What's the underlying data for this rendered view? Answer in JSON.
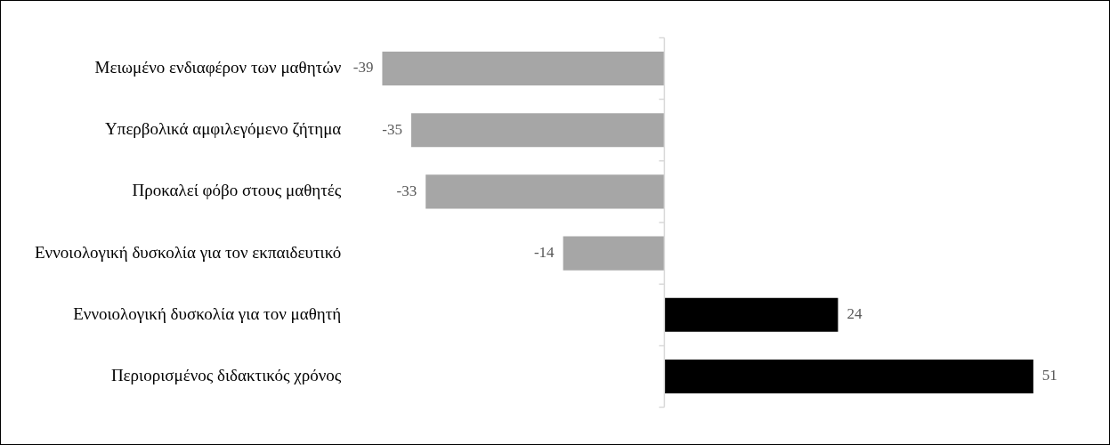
{
  "chart_data": {
    "type": "bar",
    "orientation": "horizontal",
    "categories": [
      "Μειωμένο ενδιαφέρον των μαθητών",
      "Υπερβολικά αμφιλεγόμενο ζήτημα",
      "Προκαλεί φόβο στους μαθητές",
      "Εννοιολογική δυσκολία για τον εκπαιδευτικό",
      "Εννοιολογική δυσκολία για τον μαθητή",
      "Περιορισμένος διδακτικός χρόνος"
    ],
    "values": [
      -39,
      -35,
      -33,
      -14,
      24,
      51
    ],
    "colors": [
      "#a6a6a6",
      "#a6a6a6",
      "#a6a6a6",
      "#a6a6a6",
      "#000000",
      "#000000"
    ],
    "tick_labels": "y",
    "data_labels": true,
    "grid": false,
    "legend": false
  }
}
